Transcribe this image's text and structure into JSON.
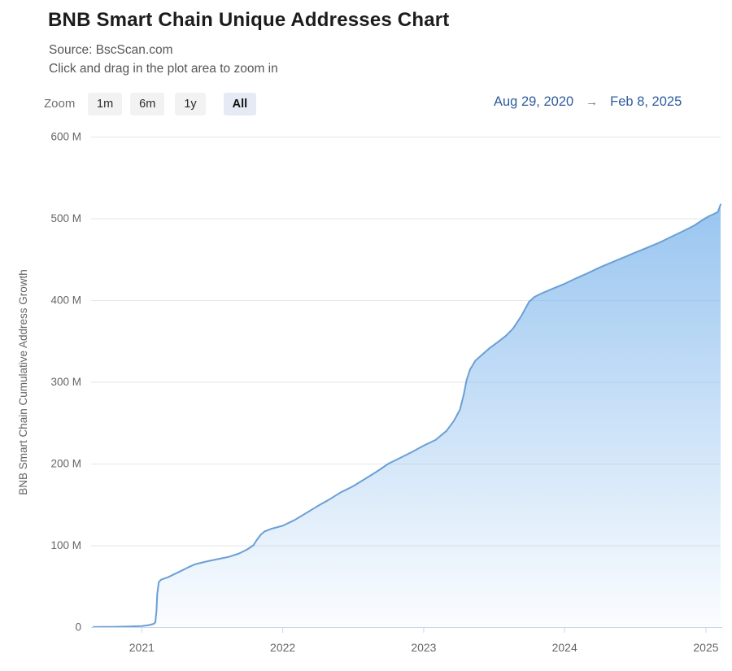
{
  "header": {
    "title": "BNB Smart Chain Unique Addresses Chart",
    "subtitle_source": "Source: BscScan.com",
    "subtitle_hint": "Click and drag in the plot area to zoom in"
  },
  "controls": {
    "zoom_label": "Zoom",
    "buttons": [
      {
        "label": "1m",
        "selected": false
      },
      {
        "label": "6m",
        "selected": false
      },
      {
        "label": "1y",
        "selected": false
      },
      {
        "label": "All",
        "selected": true
      }
    ],
    "range_from": "Aug 29, 2020",
    "range_arrow": "→",
    "range_to": "Feb 8, 2025"
  },
  "colors": {
    "series_line": "#6b9fd4",
    "series_fill": "#7cb5ec",
    "range_text": "#2e5c9e",
    "selected_button_bg": "#e5eaf4",
    "grid": "#e6e6e6",
    "axis_line": "#ccd6eb",
    "label_text": "#666666"
  },
  "chart_data": {
    "type": "area",
    "title": "BNB Smart Chain Unique Addresses Chart",
    "ylabel": "BNB Smart Chain Cumulative Address Growth",
    "xlabel": "",
    "y_unit": "M (millions of addresses)",
    "ylim": [
      0,
      600
    ],
    "grid": "horizontal",
    "legend": "none",
    "x_range": [
      "2020-08-29",
      "2025-02-08"
    ],
    "yticks": [
      {
        "value": 0,
        "label": "0"
      },
      {
        "value": 100,
        "label": "100 M"
      },
      {
        "value": 200,
        "label": "200 M"
      },
      {
        "value": 300,
        "label": "300 M"
      },
      {
        "value": 400,
        "label": "400 M"
      },
      {
        "value": 500,
        "label": "500 M"
      },
      {
        "value": 600,
        "label": "600 M"
      }
    ],
    "xticks": [
      {
        "date": "2021-01-01",
        "label": "2021"
      },
      {
        "date": "2022-01-01",
        "label": "2022"
      },
      {
        "date": "2023-01-01",
        "label": "2023"
      },
      {
        "date": "2024-01-01",
        "label": "2024"
      },
      {
        "date": "2025-01-01",
        "label": "2025"
      }
    ],
    "points": [
      [
        "2020-08-29",
        0.1
      ],
      [
        "2020-10-15",
        0.3
      ],
      [
        "2020-12-01",
        0.7
      ],
      [
        "2021-01-01",
        1.2
      ],
      [
        "2021-01-20",
        2.5
      ],
      [
        "2021-02-01",
        4
      ],
      [
        "2021-02-05",
        6
      ],
      [
        "2021-02-08",
        20
      ],
      [
        "2021-02-10",
        40
      ],
      [
        "2021-02-14",
        55
      ],
      [
        "2021-02-20",
        58
      ],
      [
        "2021-03-10",
        61
      ],
      [
        "2021-04-05",
        67
      ],
      [
        "2021-05-01",
        73
      ],
      [
        "2021-05-20",
        77
      ],
      [
        "2021-06-15",
        80
      ],
      [
        "2021-07-15",
        83
      ],
      [
        "2021-08-15",
        86
      ],
      [
        "2021-09-10",
        90
      ],
      [
        "2021-10-01",
        95
      ],
      [
        "2021-10-17",
        100
      ],
      [
        "2021-10-25",
        106
      ],
      [
        "2021-11-05",
        113
      ],
      [
        "2021-11-15",
        117
      ],
      [
        "2021-12-01",
        120
      ],
      [
        "2022-01-01",
        124
      ],
      [
        "2022-02-01",
        131
      ],
      [
        "2022-03-01",
        139
      ],
      [
        "2022-04-01",
        148
      ],
      [
        "2022-05-01",
        156
      ],
      [
        "2022-06-01",
        165
      ],
      [
        "2022-07-01",
        172
      ],
      [
        "2022-08-01",
        181
      ],
      [
        "2022-09-01",
        190
      ],
      [
        "2022-10-02",
        200
      ],
      [
        "2022-11-01",
        207
      ],
      [
        "2022-12-01",
        214
      ],
      [
        "2023-01-01",
        222
      ],
      [
        "2023-02-01",
        229
      ],
      [
        "2023-03-01",
        240
      ],
      [
        "2023-03-20",
        252
      ],
      [
        "2023-04-05",
        266
      ],
      [
        "2023-04-15",
        285
      ],
      [
        "2023-04-22",
        302
      ],
      [
        "2023-05-01",
        315
      ],
      [
        "2023-05-15",
        326
      ],
      [
        "2023-06-01",
        333
      ],
      [
        "2023-06-20",
        341
      ],
      [
        "2023-07-10",
        348
      ],
      [
        "2023-08-01",
        356
      ],
      [
        "2023-08-20",
        365
      ],
      [
        "2023-09-10",
        380
      ],
      [
        "2023-10-01",
        398
      ],
      [
        "2023-10-15",
        404
      ],
      [
        "2023-11-01",
        408
      ],
      [
        "2023-12-01",
        414
      ],
      [
        "2024-01-01",
        420
      ],
      [
        "2024-02-01",
        427
      ],
      [
        "2024-03-01",
        433
      ],
      [
        "2024-04-01",
        440
      ],
      [
        "2024-05-01",
        446
      ],
      [
        "2024-06-01",
        452
      ],
      [
        "2024-07-01",
        458
      ],
      [
        "2024-08-01",
        464
      ],
      [
        "2024-09-01",
        470
      ],
      [
        "2024-10-01",
        477
      ],
      [
        "2024-11-01",
        484
      ],
      [
        "2024-12-01",
        491
      ],
      [
        "2024-12-20",
        497
      ],
      [
        "2024-12-30",
        500
      ],
      [
        "2025-01-10",
        503
      ],
      [
        "2025-01-20",
        505
      ],
      [
        "2025-02-01",
        508
      ],
      [
        "2025-02-08",
        517
      ]
    ]
  }
}
